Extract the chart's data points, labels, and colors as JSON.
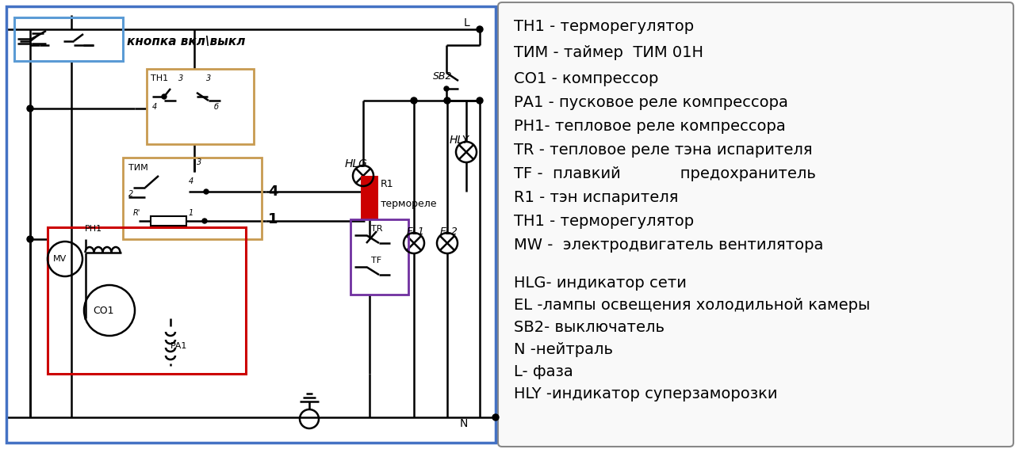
{
  "bg_color": "#ffffff",
  "border_color": "#4472c4",
  "line_color": "#000000",
  "red_color": "#cc0000",
  "blue_box_color": "#5b9bd5",
  "brown_box_color": "#c89a50",
  "red_box_color": "#cc0000",
  "purple_box_color": "#7030a0",
  "legend_items": [
    [
      "ТН1 - терморегулятор",
      14
    ],
    [
      "ТИМ - таймер  ТИМ 01Н",
      14
    ],
    [
      "СО1 - компрессор",
      14
    ],
    [
      "РА1 - пусковое реле компрессора",
      14
    ],
    [
      "РН1- тепловое реле компрессора",
      14
    ],
    [
      "TR - тепловое реле тэна испарителя",
      14
    ],
    [
      "TF -  плавкий            предохранитель",
      14
    ],
    [
      "R1 - тэн испарителя",
      14
    ],
    [
      "ТН1 - терморегулятор",
      14
    ],
    [
      "MW -  электродвигатель вентилятора",
      14
    ],
    [
      "",
      8
    ],
    [
      "HLG- индикатор сети",
      14
    ],
    [
      "EL -лампы освещения холодильной камеры",
      14
    ],
    [
      "SB2- выключатель",
      14
    ],
    [
      "N -нейтраль",
      14
    ],
    [
      "L- фаза",
      14
    ],
    [
      "HLY -индикатор суперзаморозки",
      14
    ]
  ]
}
